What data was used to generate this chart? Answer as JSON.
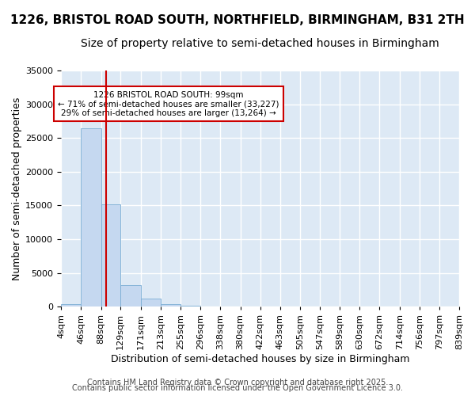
{
  "title": "1226, BRISTOL ROAD SOUTH, NORTHFIELD, BIRMINGHAM, B31 2TH",
  "subtitle": "Size of property relative to semi-detached houses in Birmingham",
  "xlabel": "Distribution of semi-detached houses by size in Birmingham",
  "ylabel": "Number of semi-detached properties",
  "footer1": "Contains HM Land Registry data © Crown copyright and database right 2025.",
  "footer2": "Contains public sector information licensed under the Open Government Licence 3.0.",
  "bar_edges": [
    4,
    46,
    88,
    129,
    171,
    213,
    255,
    296,
    338,
    380,
    422,
    463,
    505,
    547,
    589,
    630,
    672,
    714,
    756,
    797,
    839
  ],
  "bar_heights": [
    350,
    26400,
    15200,
    3200,
    1150,
    420,
    200,
    0,
    0,
    0,
    0,
    0,
    0,
    0,
    0,
    0,
    0,
    0,
    0,
    0
  ],
  "bar_color": "#c5d8f0",
  "bar_edgecolor": "#7aadd4",
  "ylim": [
    0,
    35000
  ],
  "yticks": [
    0,
    5000,
    10000,
    15000,
    20000,
    25000,
    30000,
    35000
  ],
  "property_size": 99,
  "vline_color": "#cc0000",
  "annotation_text": "1226 BRISTOL ROAD SOUTH: 99sqm\n← 71% of semi-detached houses are smaller (33,227)\n29% of semi-detached houses are larger (13,264) →",
  "annotation_box_edgecolor": "#cc0000",
  "plot_bg_color": "#dde9f5",
  "fig_bg_color": "#ffffff",
  "grid_color": "#ffffff",
  "title_fontsize": 11,
  "subtitle_fontsize": 10,
  "tick_label_fontsize": 8,
  "axis_label_fontsize": 9,
  "footer_fontsize": 7
}
